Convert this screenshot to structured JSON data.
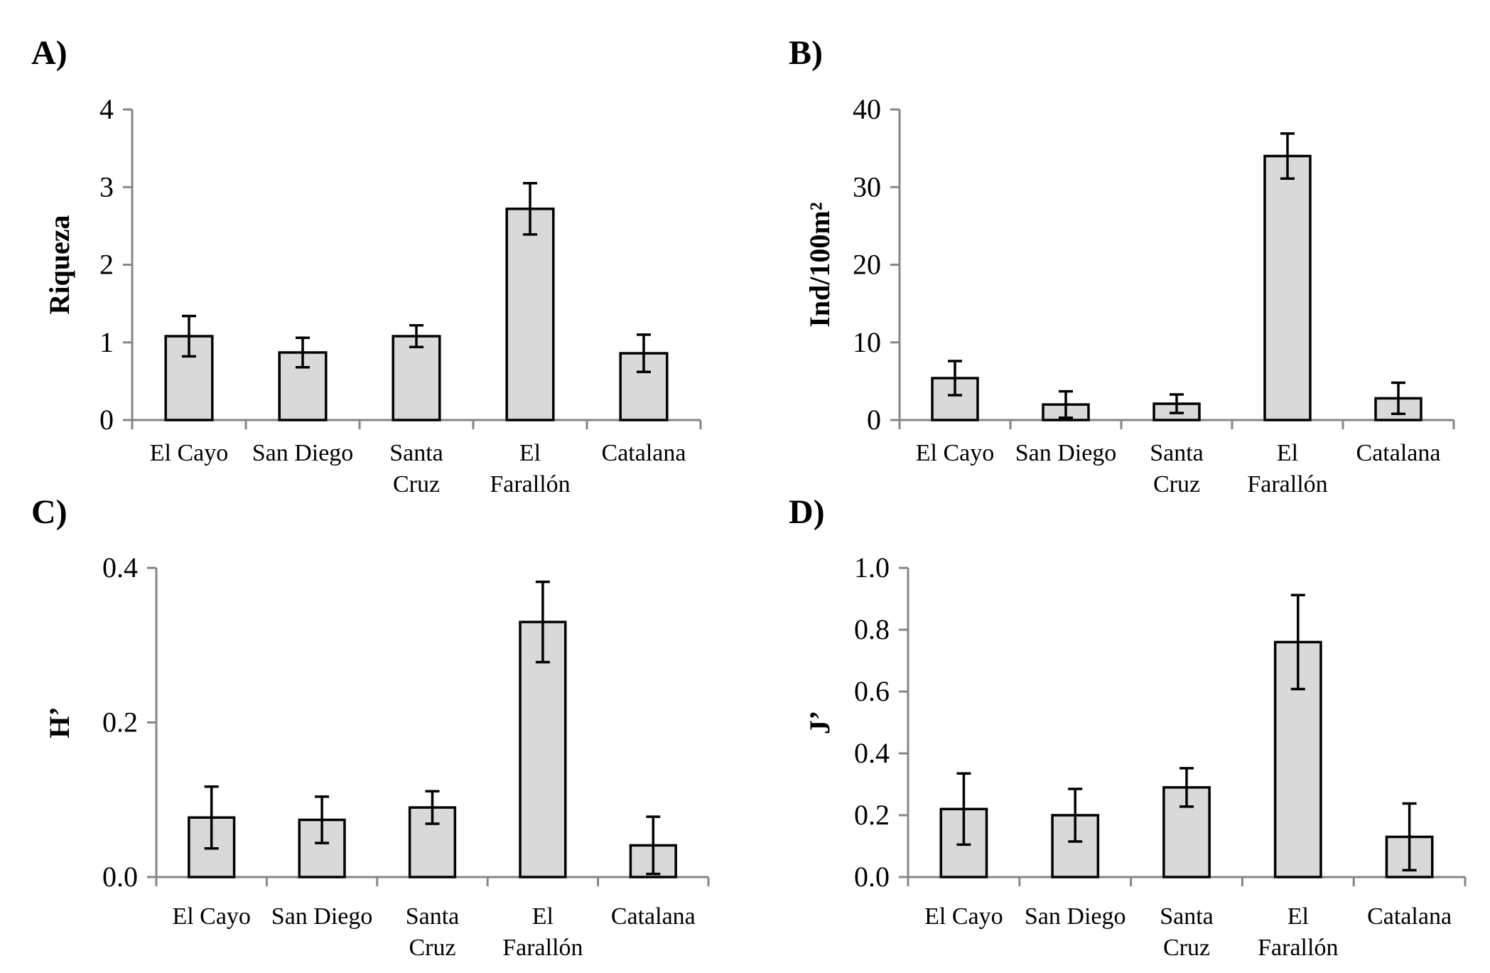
{
  "chart_data": [
    {
      "type": "bar",
      "panel": "A)",
      "title": "",
      "xlabel": "",
      "ylabel": "Riqueza",
      "ylim": [
        0,
        4
      ],
      "yticks": [
        "0",
        "1",
        "2",
        "3",
        "4"
      ],
      "grid": false,
      "categories": [
        [
          "El Cayo"
        ],
        [
          "San Diego"
        ],
        [
          "Santa",
          "Cruz"
        ],
        [
          "El",
          "Farallón"
        ],
        [
          "Catalana"
        ]
      ],
      "values": [
        1.08,
        0.87,
        1.08,
        2.72,
        0.86
      ],
      "errors": [
        0.26,
        0.19,
        0.14,
        0.33,
        0.24
      ]
    },
    {
      "type": "bar",
      "panel": "B)",
      "title": "",
      "xlabel": "",
      "ylabel": "Ind/100m²",
      "ylim": [
        0,
        40
      ],
      "yticks": [
        "0",
        "10",
        "20",
        "30",
        "40"
      ],
      "grid": false,
      "categories": [
        [
          "El Cayo"
        ],
        [
          "San Diego"
        ],
        [
          "Santa",
          "Cruz"
        ],
        [
          "El",
          "Farallón"
        ],
        [
          "Catalana"
        ]
      ],
      "values": [
        5.4,
        2.0,
        2.1,
        34.0,
        2.8
      ],
      "errors": [
        2.2,
        1.7,
        1.2,
        2.9,
        2.0
      ]
    },
    {
      "type": "bar",
      "panel": "C)",
      "title": "",
      "xlabel": "",
      "ylabel": "H’",
      "ylim": [
        0,
        0.4
      ],
      "yticks": [
        "0.0",
        "0.2",
        "0.4"
      ],
      "grid": false,
      "categories": [
        [
          "El Cayo"
        ],
        [
          "San Diego"
        ],
        [
          "Santa",
          "Cruz"
        ],
        [
          "El",
          "Farallón"
        ],
        [
          "Catalana"
        ]
      ],
      "values": [
        0.077,
        0.074,
        0.09,
        0.33,
        0.041
      ],
      "errors": [
        0.04,
        0.03,
        0.021,
        0.052,
        0.037
      ]
    },
    {
      "type": "bar",
      "panel": "D)",
      "title": "",
      "xlabel": "",
      "ylabel": "J’",
      "ylim": [
        0,
        1.0
      ],
      "yticks": [
        "0.0",
        "0.2",
        "0.4",
        "0.6",
        "0.8",
        "1.0"
      ],
      "grid": false,
      "categories": [
        [
          "El Cayo"
        ],
        [
          "San Diego"
        ],
        [
          "Santa",
          "Cruz"
        ],
        [
          "El",
          "Farallón"
        ],
        [
          "Catalana"
        ]
      ],
      "values": [
        0.22,
        0.2,
        0.29,
        0.76,
        0.13
      ],
      "errors": [
        0.115,
        0.085,
        0.062,
        0.152,
        0.108
      ]
    }
  ],
  "colors": {
    "bar_fill": "#d9d9d9",
    "bar_stroke": "#000000",
    "axis": "#868686"
  }
}
